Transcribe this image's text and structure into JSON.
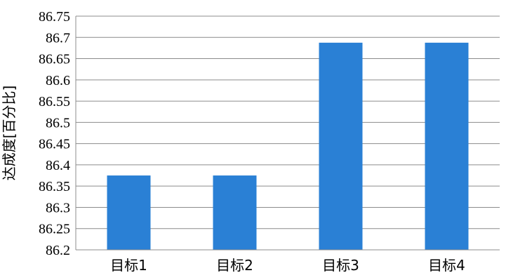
{
  "chart_data": {
    "type": "bar",
    "categories": [
      "目标1",
      "目标2",
      "目标3",
      "目标4"
    ],
    "values": [
      86.375,
      86.375,
      86.6875,
      86.6875
    ],
    "title": "",
    "xlabel": "",
    "ylabel": "达成度[百分比]",
    "ylim": [
      86.2,
      86.75
    ],
    "yticks": [
      "86.2",
      "86.25",
      "86.3",
      "86.35",
      "86.4",
      "86.45",
      "86.5",
      "86.55",
      "86.6",
      "86.65",
      "86.7",
      "86.75"
    ],
    "grid": true,
    "legend": "none",
    "bar_color": "#2a80d5"
  }
}
